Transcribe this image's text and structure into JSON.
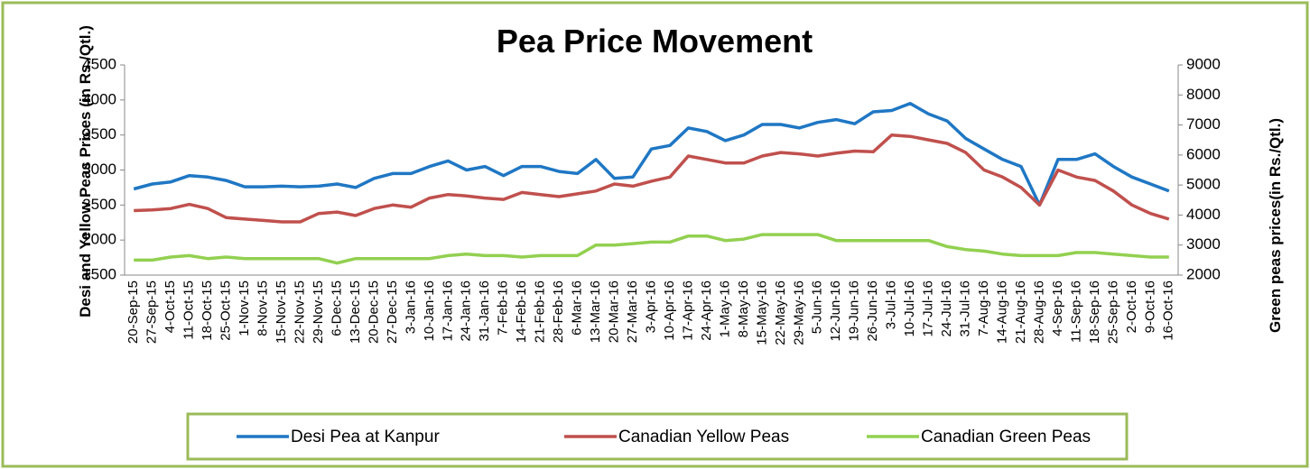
{
  "chart_data": {
    "type": "line",
    "title": "Pea Price Movement",
    "y_label": "Desi and Yellow Peas Prices (in Rs./Qtl.)",
    "y2_label": "Green peas prices(in Rs./Qtl.)",
    "categories": [
      "20-Sep-15",
      "27-Sep-15",
      "4-Oct-15",
      "11-Oct-15",
      "18-Oct-15",
      "25-Oct-15",
      "1-Nov-15",
      "8-Nov-15",
      "15-Nov-15",
      "22-Nov-15",
      "29-Nov-15",
      "6-Dec-15",
      "13-Dec-15",
      "20-Dec-15",
      "27-Dec-15",
      "3-Jan-16",
      "10-Jan-16",
      "17-Jan-16",
      "24-Jan-16",
      "31-Jan-16",
      "7-Feb-16",
      "14-Feb-16",
      "21-Feb-16",
      "28-Feb-16",
      "6-Mar-16",
      "13-Mar-16",
      "20-Mar-16",
      "27-Mar-16",
      "3-Apr-16",
      "10-Apr-16",
      "17-Apr-16",
      "24-Apr-16",
      "1-May-16",
      "8-May-16",
      "15-May-16",
      "22-May-16",
      "29-May-16",
      "5-Jun-16",
      "12-Jun-16",
      "19-Jun-16",
      "26-Jun-16",
      "3-Jul-16",
      "10-Jul-16",
      "17-Jul-16",
      "24-Jul-16",
      "31-Jul-16",
      "7-Aug-16",
      "14-Aug-16",
      "21-Aug-16",
      "28-Aug-16",
      "4-Sep-16",
      "11-Sep-16",
      "18-Sep-16",
      "25-Sep-16",
      "2-Oct-16",
      "9-Oct-16",
      "16-Oct-16"
    ],
    "series": [
      {
        "name": "Desi Pea at Kanpur",
        "color": "#1f77c4",
        "values": [
          2730,
          2800,
          2830,
          2920,
          2900,
          2850,
          2760,
          2760,
          2770,
          2760,
          2770,
          2800,
          2750,
          2880,
          2950,
          2950,
          3050,
          3130,
          3000,
          3050,
          2920,
          3050,
          3050,
          2980,
          2950,
          3150,
          2880,
          2900,
          3300,
          3350,
          3600,
          3550,
          3420,
          3500,
          3650,
          3650,
          3600,
          3680,
          3720,
          3660,
          3830,
          3850,
          3950,
          3800,
          3700,
          3450,
          3300,
          3150,
          3050,
          2500,
          3150,
          3150,
          3230,
          3050,
          2900,
          2800,
          2700
        ]
      },
      {
        "name": "Canadian Yellow Peas",
        "color": "#c0504d",
        "values": [
          2420,
          2430,
          2450,
          2510,
          2450,
          2320,
          2300,
          2280,
          2260,
          2260,
          2380,
          2400,
          2350,
          2450,
          2500,
          2470,
          2600,
          2650,
          2630,
          2600,
          2580,
          2680,
          2650,
          2620,
          2660,
          2700,
          2800,
          2770,
          2840,
          2900,
          3200,
          3150,
          3100,
          3100,
          3200,
          3250,
          3230,
          3200,
          3240,
          3270,
          3260,
          3500,
          3480,
          3430,
          3380,
          3250,
          3000,
          2900,
          2750,
          2500,
          3000,
          2900,
          2850,
          2700,
          2500,
          2380,
          2300
        ]
      },
      {
        "name": "Canadian Green Peas",
        "color": "#92d050",
        "axis": "y2",
        "values": [
          2500,
          2500,
          2600,
          2650,
          2550,
          2600,
          2550,
          2550,
          2550,
          2550,
          2550,
          2400,
          2550,
          2550,
          2550,
          2550,
          2550,
          2650,
          2700,
          2650,
          2650,
          2600,
          2650,
          2650,
          2650,
          3000,
          3000,
          3050,
          3100,
          3100,
          3300,
          3300,
          3150,
          3200,
          3350,
          3350,
          3350,
          3350,
          3150,
          3150,
          3150,
          3150,
          3150,
          3150,
          2950,
          2850,
          2800,
          2700,
          2650,
          2650,
          2650,
          2750,
          2750,
          2700,
          2650,
          2600,
          2600
        ]
      }
    ],
    "ylim": [
      1500,
      4500
    ],
    "yticks": [
      1500,
      2000,
      2500,
      3000,
      3500,
      4000,
      4500
    ],
    "y2lim": [
      2000,
      9000
    ],
    "y2ticks": [
      2000,
      3000,
      4000,
      5000,
      6000,
      7000,
      8000,
      9000
    ],
    "legend": "bottom"
  }
}
